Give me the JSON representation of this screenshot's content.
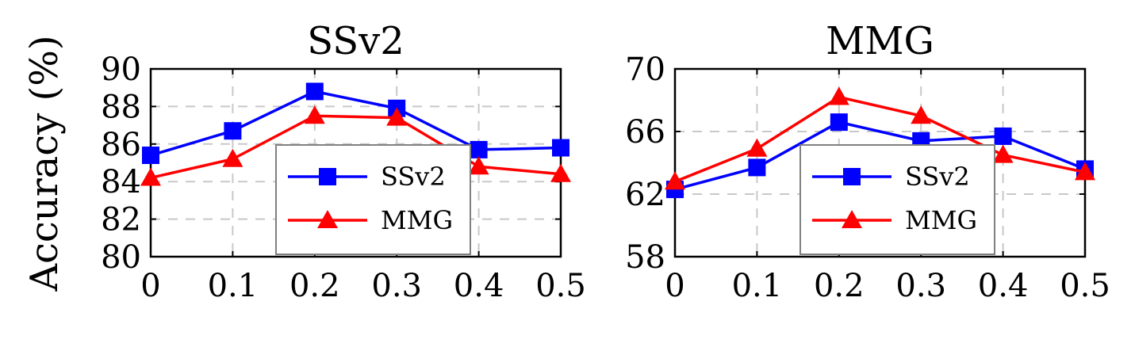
{
  "shared_ylabel": "Accuracy (%)",
  "colors": {
    "SSv2": "#0000ff",
    "MMG": "#ff0000"
  },
  "chart_data": [
    {
      "type": "line",
      "title": "SSv2",
      "ylabel": "Accuracy (%)",
      "x": [
        0,
        0.1,
        0.2,
        0.3,
        0.4,
        0.5
      ],
      "x_tick_labels": [
        "0",
        "0.1",
        "0.2",
        "0.3",
        "0.4",
        "0.5"
      ],
      "xlim": [
        0,
        0.5
      ],
      "ylim": [
        80,
        90
      ],
      "y_ticks": [
        80,
        82,
        84,
        86,
        88,
        90
      ],
      "grid": true,
      "legend_position": "bottom-right",
      "series": [
        {
          "name": "SSv2",
          "marker": "square",
          "values": [
            85.4,
            86.7,
            88.8,
            87.9,
            85.7,
            85.8
          ]
        },
        {
          "name": "MMG",
          "marker": "triangle",
          "values": [
            84.2,
            85.2,
            87.5,
            87.4,
            84.8,
            84.4
          ]
        }
      ]
    },
    {
      "type": "line",
      "title": "MMG",
      "x": [
        0,
        0.1,
        0.2,
        0.3,
        0.4,
        0.5
      ],
      "x_tick_labels": [
        "0",
        "0.1",
        "0.2",
        "0.3",
        "0.4",
        "0.5"
      ],
      "xlim": [
        0,
        0.5
      ],
      "ylim": [
        58,
        70
      ],
      "y_ticks": [
        58,
        62,
        66,
        70
      ],
      "grid": true,
      "legend_position": "bottom-center",
      "series": [
        {
          "name": "SSv2",
          "marker": "square",
          "values": [
            62.3,
            63.7,
            66.6,
            65.4,
            65.7,
            63.6
          ]
        },
        {
          "name": "MMG",
          "marker": "triangle",
          "values": [
            62.8,
            64.9,
            68.2,
            67.0,
            64.5,
            63.4
          ]
        }
      ]
    }
  ]
}
